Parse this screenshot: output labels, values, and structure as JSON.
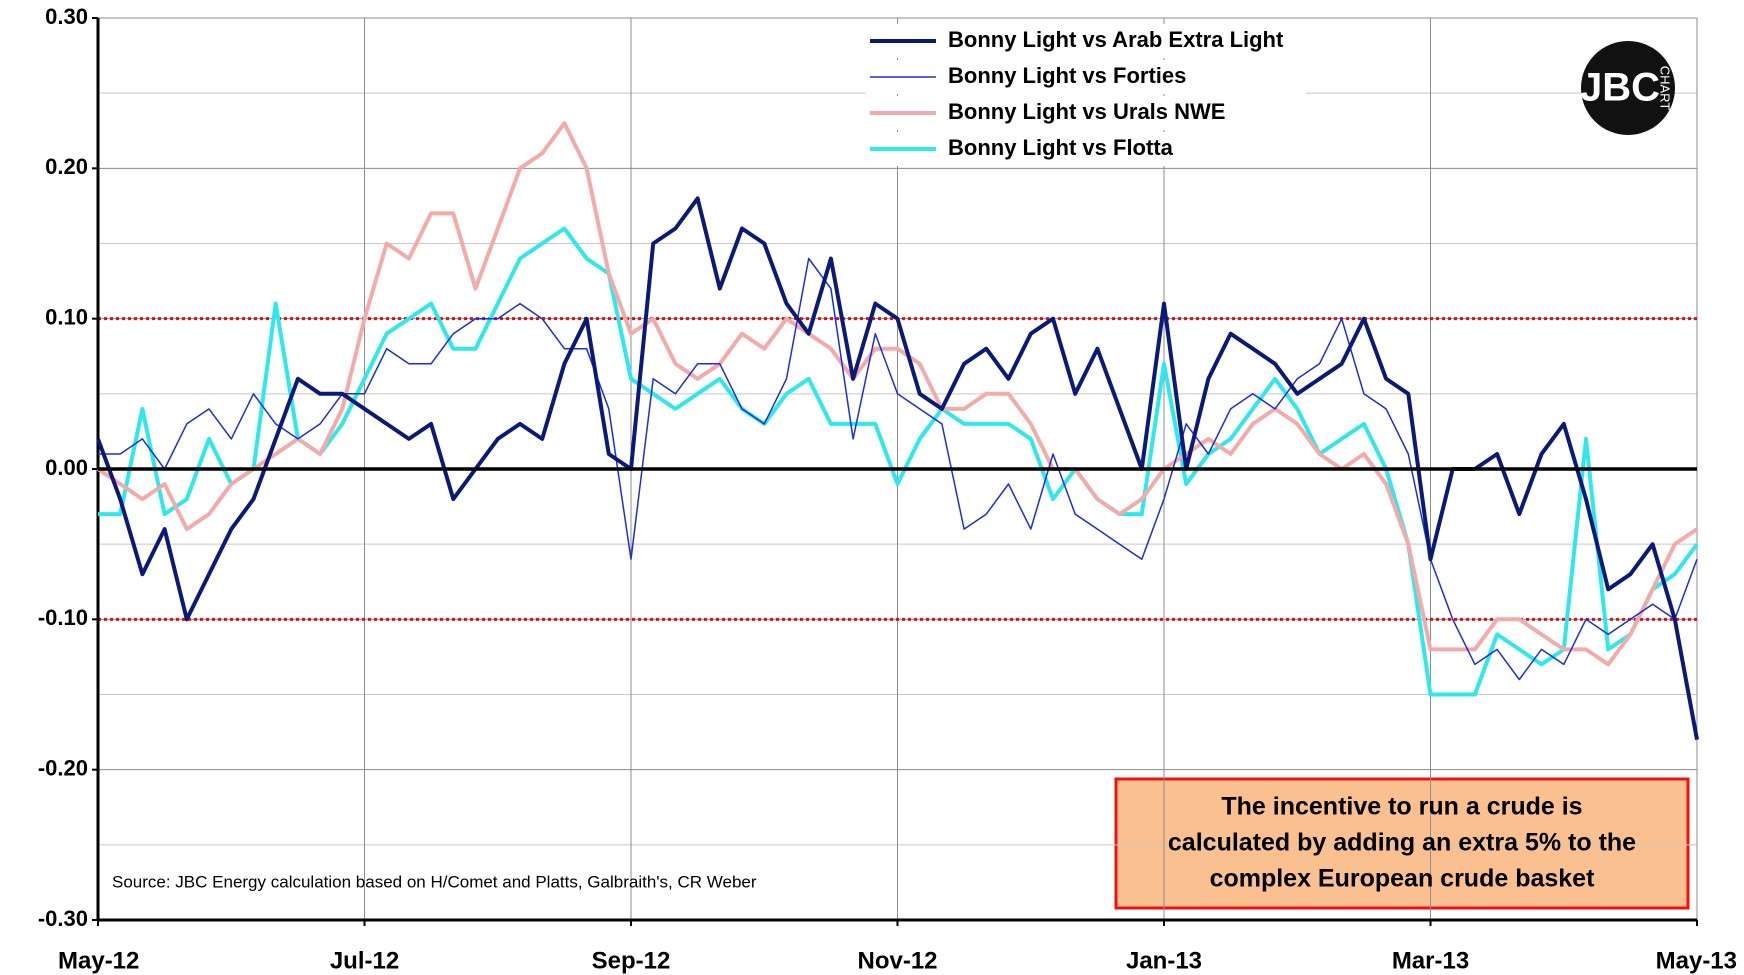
{
  "chart_data": {
    "type": "line",
    "categories": [
      "May-12",
      null,
      null,
      null,
      null,
      null,
      null,
      null,
      null,
      null,
      null,
      null,
      "Jul-12",
      null,
      null,
      null,
      null,
      null,
      null,
      null,
      null,
      null,
      null,
      null,
      "Sep-12",
      null,
      null,
      null,
      null,
      null,
      null,
      null,
      null,
      null,
      null,
      null,
      "Nov-12",
      null,
      null,
      null,
      null,
      null,
      null,
      null,
      null,
      null,
      null,
      null,
      "Jan-13",
      null,
      null,
      null,
      null,
      null,
      null,
      null,
      null,
      null,
      null,
      null,
      "Mar-13",
      null,
      null,
      null,
      null,
      null,
      null,
      null,
      null,
      null,
      null,
      null,
      "May-13"
    ],
    "series": [
      {
        "name": "Bonny Light vs Arab Extra Light",
        "color": "#0a1a7a",
        "line_width": 4,
        "values": [
          0.02,
          -0.02,
          -0.07,
          -0.04,
          -0.1,
          -0.07,
          -0.04,
          -0.02,
          0.02,
          0.06,
          0.05,
          0.05,
          0.04,
          0.03,
          0.02,
          0.03,
          -0.02,
          0.0,
          0.02,
          0.03,
          0.02,
          0.07,
          0.1,
          0.01,
          0.0,
          0.15,
          0.16,
          0.18,
          0.12,
          0.16,
          0.15,
          0.11,
          0.09,
          0.14,
          0.06,
          0.11,
          0.1,
          0.05,
          0.04,
          0.07,
          0.08,
          0.06,
          0.09,
          0.1,
          0.05,
          0.08,
          0.04,
          0.0,
          0.11,
          0.0,
          0.06,
          0.09,
          0.08,
          0.07,
          0.05,
          0.06,
          0.07,
          0.1,
          0.06,
          0.05,
          -0.06,
          0.0,
          0.0,
          0.01,
          -0.03,
          0.01,
          0.03,
          -0.02,
          -0.08,
          -0.07,
          -0.05,
          -0.1,
          -0.18
        ]
      },
      {
        "name": "Bonny Light vs Forties",
        "color": "#1a2ee0",
        "line_width": 1.5,
        "values": [
          0.01,
          0.01,
          0.02,
          0.0,
          0.03,
          0.04,
          0.02,
          0.05,
          0.03,
          0.02,
          0.03,
          0.05,
          0.05,
          0.08,
          0.07,
          0.07,
          0.09,
          0.1,
          0.1,
          0.11,
          0.1,
          0.08,
          0.08,
          0.04,
          -0.06,
          0.06,
          0.05,
          0.07,
          0.07,
          0.04,
          0.03,
          0.06,
          0.14,
          0.12,
          0.02,
          0.09,
          0.05,
          0.04,
          0.03,
          -0.04,
          -0.03,
          -0.01,
          -0.04,
          0.01,
          -0.03,
          -0.04,
          -0.05,
          -0.06,
          -0.02,
          0.03,
          0.01,
          0.04,
          0.05,
          0.04,
          0.06,
          0.07,
          0.1,
          0.05,
          0.04,
          0.01,
          -0.06,
          -0.1,
          -0.13,
          -0.12,
          -0.14,
          -0.12,
          -0.13,
          -0.1,
          -0.11,
          -0.1,
          -0.09,
          -0.1,
          -0.06
        ]
      },
      {
        "name": "Bonny Light vs Urals NWE",
        "color": "#f4aaa8",
        "line_width": 4,
        "values": [
          0.0,
          -0.01,
          -0.02,
          -0.01,
          -0.04,
          -0.03,
          -0.01,
          0.0,
          0.01,
          0.02,
          0.01,
          0.04,
          0.1,
          0.15,
          0.14,
          0.17,
          0.17,
          0.12,
          0.16,
          0.2,
          0.21,
          0.23,
          0.2,
          0.13,
          0.09,
          0.1,
          0.07,
          0.06,
          0.07,
          0.09,
          0.08,
          0.1,
          0.09,
          0.08,
          0.06,
          0.08,
          0.08,
          0.07,
          0.04,
          0.04,
          0.05,
          0.05,
          0.03,
          0.0,
          0.0,
          -0.02,
          -0.03,
          -0.02,
          0.0,
          0.01,
          0.02,
          0.01,
          0.03,
          0.04,
          0.03,
          0.01,
          0.0,
          0.01,
          -0.01,
          -0.05,
          -0.12,
          -0.12,
          -0.12,
          -0.1,
          -0.1,
          -0.11,
          -0.12,
          -0.12,
          -0.13,
          -0.11,
          -0.08,
          -0.05,
          -0.04
        ]
      },
      {
        "name": "Bonny Light vs Flotta",
        "color": "#2ee8ee",
        "line_width": 4,
        "values": [
          -0.03,
          -0.03,
          0.04,
          -0.03,
          -0.02,
          0.02,
          -0.01,
          0.0,
          0.11,
          0.02,
          0.01,
          0.03,
          0.06,
          0.09,
          0.1,
          0.11,
          0.08,
          0.08,
          0.11,
          0.14,
          0.15,
          0.16,
          0.14,
          0.13,
          0.06,
          0.05,
          0.04,
          0.05,
          0.06,
          0.04,
          0.03,
          0.05,
          0.06,
          0.03,
          0.03,
          0.03,
          -0.01,
          0.02,
          0.04,
          0.03,
          0.03,
          0.03,
          0.02,
          -0.02,
          0.0,
          -0.02,
          -0.03,
          -0.03,
          0.07,
          -0.01,
          0.01,
          0.02,
          0.04,
          0.06,
          0.04,
          0.01,
          0.02,
          0.03,
          0.0,
          -0.05,
          -0.15,
          -0.15,
          -0.15,
          -0.11,
          -0.12,
          -0.13,
          -0.12,
          0.02,
          -0.12,
          -0.11,
          -0.08,
          -0.07,
          -0.05
        ]
      }
    ],
    "ylim": [
      -0.3,
      0.3
    ],
    "yticks": [
      {
        "value": -0.3,
        "label": "-0.30"
      },
      {
        "value": -0.2,
        "label": "-0.20"
      },
      {
        "value": -0.1,
        "label": "-0.10"
      },
      {
        "value": 0,
        "label": "0.00"
      },
      {
        "value": 0.1,
        "label": "0.10"
      },
      {
        "value": 0.2,
        "label": "0.20"
      },
      {
        "value": 0.3,
        "label": "0.30"
      }
    ],
    "minor_grid": [
      -0.25,
      -0.15,
      -0.05,
      0.05,
      0.15,
      0.25
    ],
    "threshold_lines": [
      0.1,
      -0.1
    ],
    "zero_line": true,
    "grid": true,
    "legend": "top",
    "source": "Source: JBC Energy calculation based on H/Comet and Platts, Galbraith's, CR Weber",
    "annotation": [
      "The incentive to run a crude is",
      "calculated by adding an extra 5% to the",
      "complex European crude basket"
    ],
    "logo": {
      "text": "JBC",
      "subtext": "CHART"
    }
  }
}
